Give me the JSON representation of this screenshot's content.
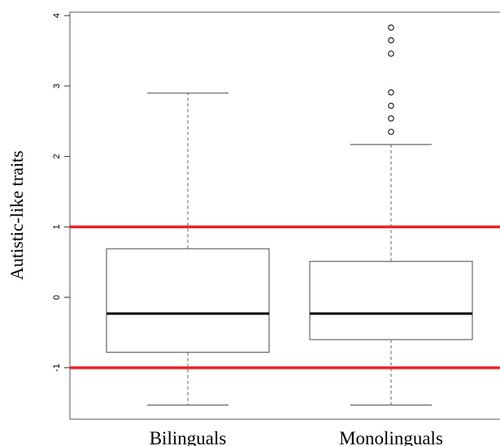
{
  "chart_data": {
    "type": "box",
    "title": "",
    "xlabel": "",
    "ylabel": "Autistic-like traits",
    "ylim": [
      -1.75,
      4.1
    ],
    "yticks": [
      -1,
      0,
      1,
      2,
      3,
      4
    ],
    "grid": false,
    "reference_lines": [
      {
        "y": 1,
        "color": "#e8262a"
      },
      {
        "y": -1,
        "color": "#e8262a"
      }
    ],
    "categories": [
      "Bilinguals",
      "Monolinguals"
    ],
    "boxes": [
      {
        "name": "Bilinguals",
        "whisker_low": -1.53,
        "q1": -0.78,
        "median": -0.23,
        "q3": 0.69,
        "whisker_high": 2.9,
        "outliers": []
      },
      {
        "name": "Monolinguals",
        "whisker_low": -1.53,
        "q1": -0.6,
        "median": -0.23,
        "q3": 0.51,
        "whisker_high": 2.17,
        "outliers": [
          2.35,
          2.54,
          2.72,
          2.91,
          3.46,
          3.65,
          3.83
        ]
      }
    ],
    "colors": {
      "reference_line": "#e8262a",
      "box_stroke": "#666666",
      "median": "#000000"
    }
  }
}
